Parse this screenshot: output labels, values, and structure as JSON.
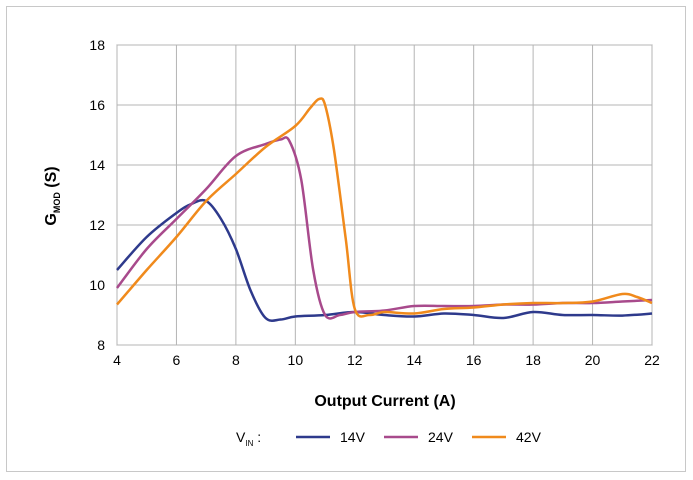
{
  "chart_data": {
    "type": "line",
    "title": "",
    "xlabel": "Output Current (A)",
    "ylabel_main": "G",
    "ylabel_sub": "MOD",
    "ylabel_unit": " (S)",
    "xlim": [
      4,
      22
    ],
    "ylim": [
      8,
      18
    ],
    "xticks": [
      4,
      6,
      8,
      10,
      12,
      14,
      16,
      18,
      20,
      22
    ],
    "yticks": [
      8,
      10,
      12,
      14,
      16,
      18
    ],
    "grid": true,
    "legend": {
      "prefix_main": "V",
      "prefix_sub": "IN",
      "prefix_suffix": " :",
      "placement": "bottom"
    },
    "series": [
      {
        "name": "14V",
        "color": "#2e3a8c",
        "points": [
          [
            4,
            10.5
          ],
          [
            5,
            11.6
          ],
          [
            6,
            12.4
          ],
          [
            6.5,
            12.7
          ],
          [
            7,
            12.8
          ],
          [
            7.5,
            12.2
          ],
          [
            8,
            11.2
          ],
          [
            8.5,
            9.8
          ],
          [
            9,
            8.9
          ],
          [
            9.5,
            8.85
          ],
          [
            10,
            8.95
          ],
          [
            11,
            9.0
          ],
          [
            12,
            9.1
          ],
          [
            13,
            9.0
          ],
          [
            14,
            8.95
          ],
          [
            15,
            9.05
          ],
          [
            16,
            9.0
          ],
          [
            17,
            8.9
          ],
          [
            18,
            9.1
          ],
          [
            19,
            9.0
          ],
          [
            20,
            9.0
          ],
          [
            21,
            8.98
          ],
          [
            22,
            9.05
          ]
        ]
      },
      {
        "name": "24V",
        "color": "#a84a8c",
        "points": [
          [
            4,
            9.9
          ],
          [
            5,
            11.2
          ],
          [
            6,
            12.2
          ],
          [
            7,
            13.2
          ],
          [
            8,
            14.3
          ],
          [
            9,
            14.7
          ],
          [
            9.5,
            14.85
          ],
          [
            9.8,
            14.8
          ],
          [
            10.2,
            13.5
          ],
          [
            10.6,
            10.5
          ],
          [
            11,
            9.0
          ],
          [
            11.5,
            9.0
          ],
          [
            12,
            9.1
          ],
          [
            13,
            9.15
          ],
          [
            14,
            9.3
          ],
          [
            15,
            9.3
          ],
          [
            16,
            9.3
          ],
          [
            17,
            9.35
          ],
          [
            18,
            9.35
          ],
          [
            19,
            9.4
          ],
          [
            20,
            9.4
          ],
          [
            21,
            9.45
          ],
          [
            22,
            9.5
          ]
        ]
      },
      {
        "name": "42V",
        "color": "#f08a1c",
        "points": [
          [
            4,
            9.35
          ],
          [
            5,
            10.5
          ],
          [
            6,
            11.6
          ],
          [
            7,
            12.8
          ],
          [
            8,
            13.7
          ],
          [
            9,
            14.6
          ],
          [
            10,
            15.3
          ],
          [
            10.5,
            15.9
          ],
          [
            10.8,
            16.2
          ],
          [
            11,
            16.0
          ],
          [
            11.3,
            14.5
          ],
          [
            11.7,
            11.5
          ],
          [
            12,
            9.2
          ],
          [
            12.5,
            9.0
          ],
          [
            13,
            9.1
          ],
          [
            14,
            9.05
          ],
          [
            15,
            9.2
          ],
          [
            16,
            9.25
          ],
          [
            17,
            9.35
          ],
          [
            18,
            9.4
          ],
          [
            19,
            9.4
          ],
          [
            20,
            9.45
          ],
          [
            21,
            9.7
          ],
          [
            21.5,
            9.6
          ],
          [
            22,
            9.4
          ]
        ]
      }
    ]
  }
}
